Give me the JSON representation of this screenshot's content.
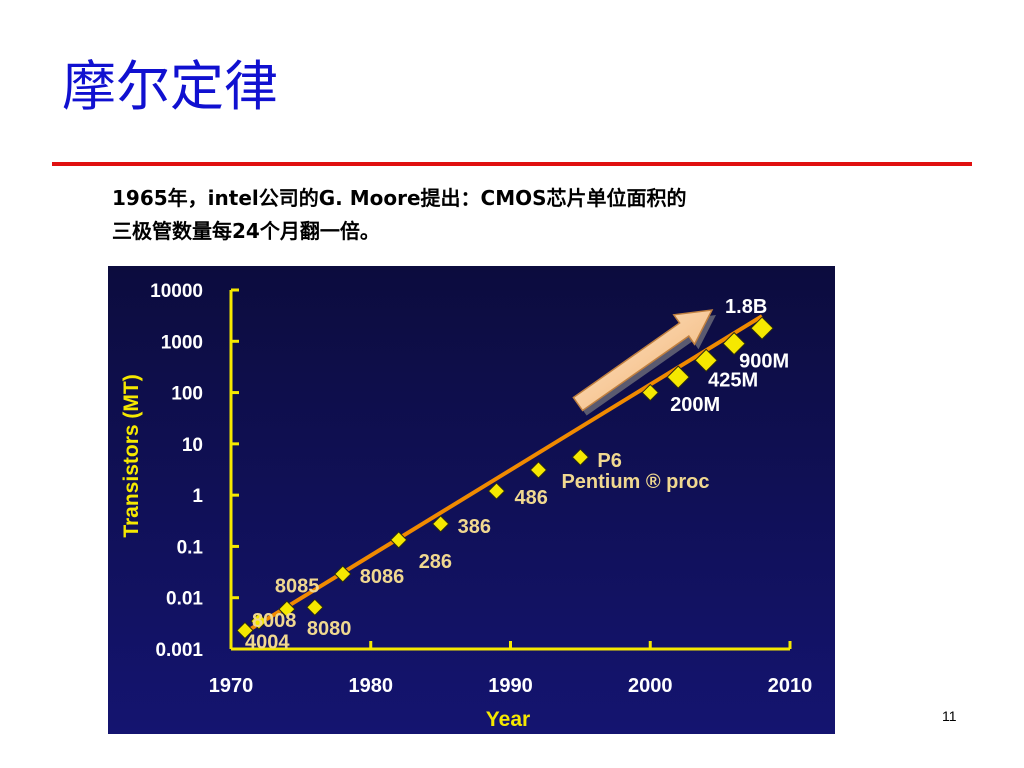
{
  "slide": {
    "title": "摩尔定律",
    "description_line1": "1965年，intel公司的G. Moore提出：CMOS芯片单位面积的",
    "description_line2": "三极管数量每24个月翻一倍。",
    "page_number": "11"
  },
  "colors": {
    "title": "#1010d0",
    "rule": "#e01010",
    "chart_background": "#10105a",
    "axis": "#f5e800",
    "marker": "#f5e800",
    "trend_line": "#f08a00",
    "label_text": "#f0d890"
  },
  "chart_data": {
    "type": "scatter",
    "title": "",
    "xlabel": "Year",
    "ylabel": "Transistors (MT)",
    "xlim": [
      1970,
      2010
    ],
    "ylim": [
      0.001,
      10000
    ],
    "yscale": "log",
    "x_ticks": [
      "1970",
      "1980",
      "1990",
      "2000",
      "2010"
    ],
    "y_ticks": [
      "10000",
      "1000",
      "100",
      "10",
      "1",
      "0.1",
      "0.01",
      "0.001"
    ],
    "grid": false,
    "legend": "none",
    "trend_line": {
      "x": [
        1971,
        2008
      ],
      "y": [
        0.0021,
        3100
      ]
    },
    "points": [
      {
        "label": "4004",
        "x": 1971,
        "y": 0.0023
      },
      {
        "label": "8008",
        "x": 1972,
        "y": 0.0035
      },
      {
        "label": "8080",
        "x": 1974,
        "y": 0.006
      },
      {
        "label": "8085",
        "x": 1976,
        "y": 0.0065
      },
      {
        "label": "8086",
        "x": 1978,
        "y": 0.029
      },
      {
        "label": "286",
        "x": 1982,
        "y": 0.134
      },
      {
        "label": "386",
        "x": 1985,
        "y": 0.275
      },
      {
        "label": "486",
        "x": 1989,
        "y": 1.2
      },
      {
        "label": "Pentium ® proc",
        "x": 1992,
        "y": 3.1
      },
      {
        "label": "P6",
        "x": 1995,
        "y": 5.5
      },
      {
        "label": "",
        "x": 2000,
        "y": 100
      },
      {
        "label": "200M",
        "x": 2002,
        "y": 200
      },
      {
        "label": "425M",
        "x": 2004,
        "y": 425
      },
      {
        "label": "900M",
        "x": 2006,
        "y": 900
      },
      {
        "label": "1.8B",
        "x": 2008,
        "y": 1800
      }
    ]
  }
}
